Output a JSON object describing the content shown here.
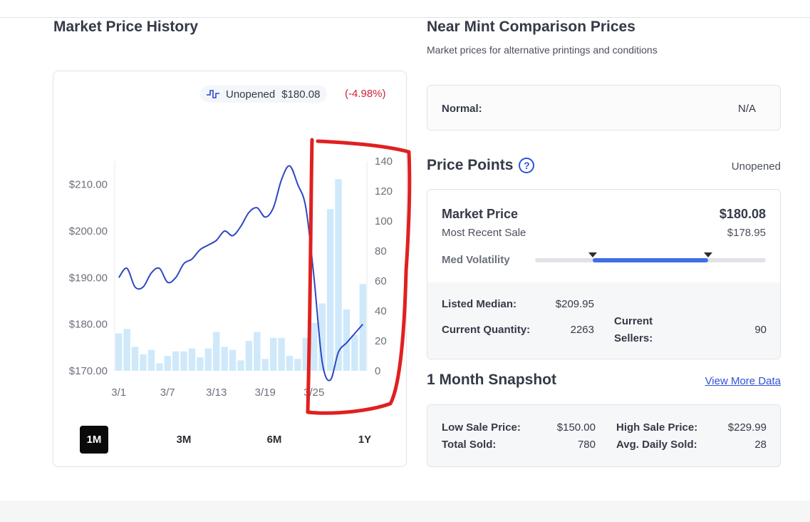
{
  "left": {
    "title": "Market Price History",
    "legend": {
      "label": "Unopened",
      "value": "$180.08",
      "change": "(-4.98%)"
    },
    "ranges": [
      {
        "label": "1M",
        "active": true
      },
      {
        "label": "3M",
        "active": false
      },
      {
        "label": "6M",
        "active": false
      },
      {
        "label": "1Y",
        "active": false
      }
    ]
  },
  "chart_data": {
    "type": "line",
    "title": "",
    "series": [
      {
        "name": "Unopened market price",
        "axis": "left",
        "type": "line",
        "color": "#2d47c7",
        "x": [
          0,
          1,
          2,
          3,
          4,
          5,
          6,
          7,
          8,
          9,
          10,
          11,
          12,
          13,
          14,
          15,
          16,
          17,
          18,
          19,
          20,
          21,
          22,
          23,
          24,
          25,
          26,
          27,
          28,
          29,
          30
        ],
        "values": [
          190,
          192,
          188,
          188,
          191,
          192,
          189,
          190,
          193,
          194,
          196,
          197,
          198,
          200,
          199,
          201,
          204,
          205,
          203,
          205,
          211,
          214,
          210,
          205,
          190,
          172,
          168,
          174,
          176,
          178,
          180
        ]
      },
      {
        "name": "Volume",
        "axis": "right",
        "type": "bar",
        "color": "#cfe9fb",
        "values": [
          25,
          28,
          16,
          11,
          14,
          5,
          10,
          13,
          13,
          15,
          9,
          15,
          26,
          16,
          14,
          7,
          20,
          26,
          8,
          22,
          22,
          10,
          8,
          22,
          32,
          45,
          108,
          128,
          41,
          24,
          58
        ]
      }
    ],
    "x_tick_labels": [
      "3/1",
      "3/7",
      "3/13",
      "3/19",
      "3/25"
    ],
    "y_left_ticks": [
      "$210.00",
      "$200.00",
      "$190.00",
      "$180.00",
      "$170.00"
    ],
    "y_left_range": [
      170,
      215
    ],
    "y_right_ticks": [
      "140",
      "120",
      "100",
      "80",
      "60",
      "40",
      "20",
      "0"
    ],
    "y_right_range": [
      0,
      140
    ]
  },
  "right": {
    "title": "Near Mint Comparison Prices",
    "subtitle": "Market prices for alternative printings and conditions",
    "normal": {
      "label": "Normal:",
      "value": "N/A"
    },
    "price_points": {
      "title": "Price Points",
      "help": "?",
      "type": "Unopened",
      "market_price_label": "Market Price",
      "market_price": "$180.08",
      "recent_sale_label": "Most Recent Sale",
      "recent_sale": "$178.95",
      "volatility_label": "Med Volatility",
      "volatility_fill_fraction": 0.5,
      "listed_median_label": "Listed Median:",
      "listed_median": "$209.95",
      "quantity_label": "Current Quantity:",
      "quantity": "2263",
      "sellers_label_1": "Current",
      "sellers_label_2": "Sellers:",
      "sellers": "90"
    },
    "snapshot": {
      "title": "1 Month Snapshot",
      "link": "View More Data",
      "low_label": "Low Sale Price:",
      "low": "$150.00",
      "high_label": "High Sale Price:",
      "high": "$229.99",
      "total_label": "Total Sold:",
      "total": "780",
      "avg_label": "Avg. Daily Sold:",
      "avg": "28"
    }
  },
  "colors": {
    "line": "#2d47c7",
    "bars": "#cfe9fb",
    "negative": "#c8243c",
    "link": "#2f52d8",
    "annotation": "#e02020"
  }
}
